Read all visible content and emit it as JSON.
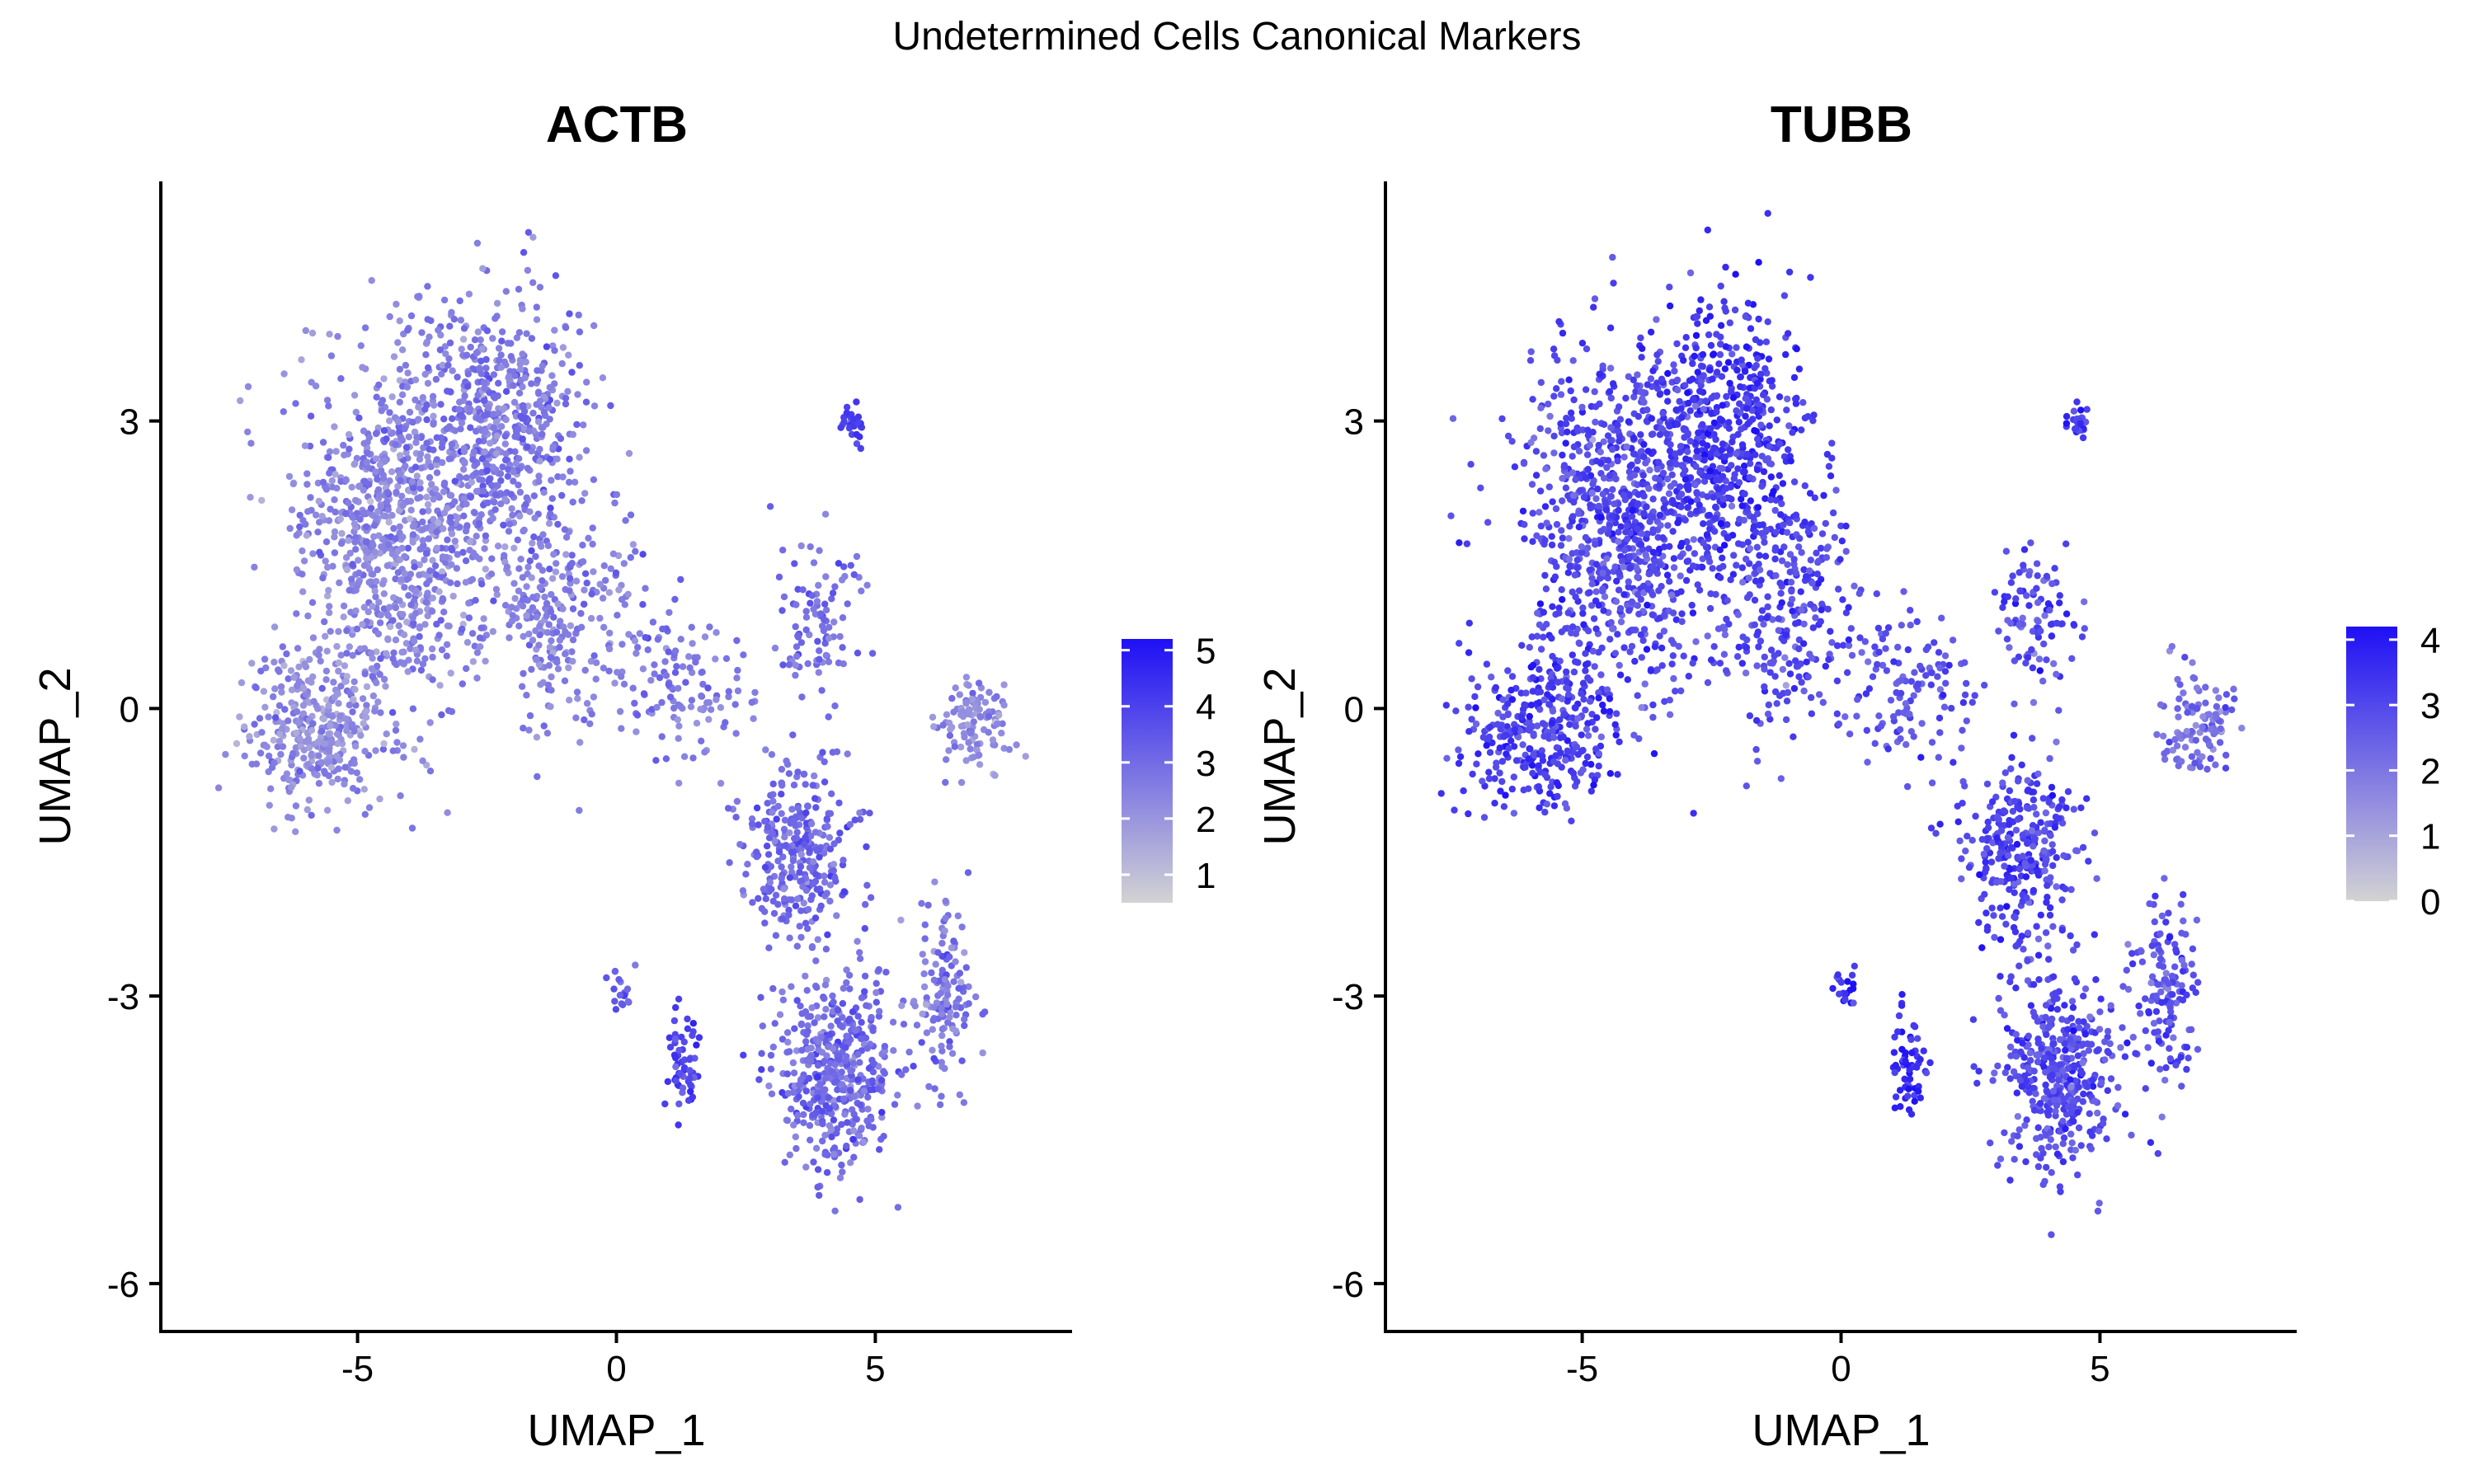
{
  "figure": {
    "suptitle": "Undetermined Cells Canonical Markers"
  },
  "colors": {
    "low": "#d3d3d3",
    "high": "#1e10f5",
    "background": "#ffffff",
    "axis": "#000000"
  },
  "chart_data": [
    {
      "type": "scatter",
      "title": "ACTB",
      "xlabel": "UMAP_1",
      "ylabel": "UMAP_2",
      "xlim": [
        -8.8,
        8.8
      ],
      "ylim": [
        -6.5,
        5.5
      ],
      "xticks": [
        -5,
        0,
        5
      ],
      "yticks": [
        -6,
        -3,
        0,
        3
      ],
      "xtick_labels": [
        "-5",
        "0",
        "5"
      ],
      "ytick_labels": [
        "-6",
        "-3",
        "0",
        "3"
      ],
      "grid": false,
      "legend": "right",
      "color_scale": {
        "min": 0.5,
        "max": 5.2,
        "ticks": [
          1,
          2,
          3,
          4,
          5
        ],
        "tick_labels": [
          "1",
          "2",
          "3",
          "4",
          "5"
        ]
      },
      "clusters": [
        {
          "cx": -4.2,
          "cy": 1.9,
          "sx": 1.3,
          "sy": 1.25,
          "n": 900,
          "level": 2.4
        },
        {
          "cx": -2.2,
          "cy": 2.9,
          "sx": 1.0,
          "sy": 0.9,
          "n": 550,
          "level": 2.7
        },
        {
          "cx": -5.8,
          "cy": -0.2,
          "sx": 0.9,
          "sy": 0.6,
          "n": 350,
          "level": 2.2
        },
        {
          "cx": -1.0,
          "cy": 1.0,
          "sx": 0.9,
          "sy": 0.8,
          "n": 260,
          "level": 2.5
        },
        {
          "cx": 1.3,
          "cy": 0.2,
          "sx": 0.8,
          "sy": 0.5,
          "n": 120,
          "level": 2.7
        },
        {
          "cx": 3.8,
          "cy": 0.9,
          "sx": 0.55,
          "sy": 0.55,
          "n": 100,
          "level": 3.0
        },
        {
          "cx": 4.6,
          "cy": 3.0,
          "sx": 0.15,
          "sy": 0.15,
          "n": 25,
          "level": 4.2
        },
        {
          "cx": 3.5,
          "cy": -1.5,
          "sx": 0.75,
          "sy": 0.6,
          "n": 300,
          "level": 3.1
        },
        {
          "cx": 4.2,
          "cy": -3.8,
          "sx": 0.75,
          "sy": 0.7,
          "n": 450,
          "level": 3.0
        },
        {
          "cx": 6.3,
          "cy": -3.0,
          "sx": 0.45,
          "sy": 0.7,
          "n": 140,
          "level": 2.8
        },
        {
          "cx": 6.9,
          "cy": -0.2,
          "sx": 0.45,
          "sy": 0.35,
          "n": 110,
          "level": 2.3
        },
        {
          "cx": 1.3,
          "cy": -3.7,
          "sx": 0.2,
          "sy": 0.35,
          "n": 60,
          "level": 4.0
        },
        {
          "cx": 0.1,
          "cy": -2.9,
          "sx": 0.15,
          "sy": 0.15,
          "n": 20,
          "level": 3.3
        }
      ]
    },
    {
      "type": "scatter",
      "title": "TUBB",
      "xlabel": "UMAP_1",
      "ylabel": "UMAP_2",
      "xlim": [
        -8.8,
        8.8
      ],
      "ylim": [
        -6.5,
        5.5
      ],
      "xticks": [
        -5,
        0,
        5
      ],
      "yticks": [
        -6,
        -3,
        0,
        3
      ],
      "xtick_labels": [
        "-5",
        "0",
        "5"
      ],
      "ytick_labels": [
        "-6",
        "-3",
        "0",
        "3"
      ],
      "grid": false,
      "legend": "right",
      "color_scale": {
        "min": 0,
        "max": 4.2,
        "ticks": [
          0,
          1,
          2,
          3,
          4
        ],
        "tick_labels": [
          "0",
          "1",
          "2",
          "3",
          "4"
        ]
      },
      "clusters": [
        {
          "cx": -4.2,
          "cy": 1.9,
          "sx": 1.3,
          "sy": 1.25,
          "n": 900,
          "level": 3.0
        },
        {
          "cx": -2.2,
          "cy": 2.9,
          "sx": 1.0,
          "sy": 0.9,
          "n": 550,
          "level": 3.4
        },
        {
          "cx": -5.8,
          "cy": -0.2,
          "sx": 0.9,
          "sy": 0.6,
          "n": 350,
          "level": 3.2
        },
        {
          "cx": -1.0,
          "cy": 1.0,
          "sx": 0.9,
          "sy": 0.8,
          "n": 260,
          "level": 3.0
        },
        {
          "cx": 1.3,
          "cy": 0.2,
          "sx": 0.8,
          "sy": 0.5,
          "n": 120,
          "level": 2.7
        },
        {
          "cx": 3.8,
          "cy": 0.9,
          "sx": 0.55,
          "sy": 0.55,
          "n": 100,
          "level": 2.9
        },
        {
          "cx": 4.6,
          "cy": 3.0,
          "sx": 0.15,
          "sy": 0.15,
          "n": 25,
          "level": 3.3
        },
        {
          "cx": 3.5,
          "cy": -1.5,
          "sx": 0.75,
          "sy": 0.6,
          "n": 300,
          "level": 3.1
        },
        {
          "cx": 4.2,
          "cy": -3.8,
          "sx": 0.75,
          "sy": 0.7,
          "n": 450,
          "level": 2.9
        },
        {
          "cx": 6.3,
          "cy": -3.0,
          "sx": 0.45,
          "sy": 0.7,
          "n": 140,
          "level": 2.8
        },
        {
          "cx": 6.9,
          "cy": -0.2,
          "sx": 0.45,
          "sy": 0.35,
          "n": 110,
          "level": 2.1
        },
        {
          "cx": 1.3,
          "cy": -3.7,
          "sx": 0.2,
          "sy": 0.35,
          "n": 60,
          "level": 3.6
        },
        {
          "cx": 0.1,
          "cy": -2.9,
          "sx": 0.15,
          "sy": 0.15,
          "n": 20,
          "level": 3.6
        }
      ]
    }
  ]
}
